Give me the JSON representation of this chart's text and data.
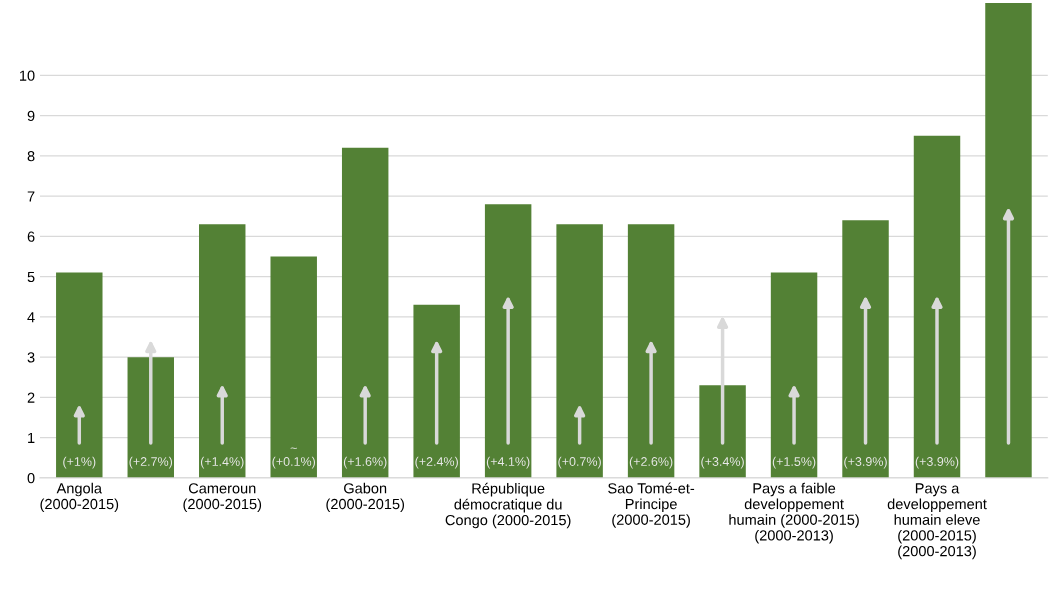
{
  "chart_data": {
    "type": "bar",
    "categories": [
      "Angola\n(2000-2015)",
      null,
      "Cameroun\n(2000-2015)",
      null,
      "Gabon\n(2000-2015)",
      null,
      "République\ndémocratique du\nCongo (2000-2015)",
      null,
      "Sao Tomé-et-\nPrincipe\n(2000-2015)",
      null,
      "Pays a faible\ndeveloppement\nhumain (2000-2015)\n(2000-2013)",
      null,
      "Pays a\ndeveloppement\nhumain eleve\n(2000-2015)\n(2000-2013)",
      null
    ],
    "values": [
      5.1,
      3.0,
      6.3,
      5.5,
      8.2,
      4.3,
      6.8,
      6.3,
      6.3,
      2.3,
      5.1,
      6.4,
      8.5,
      11.8
    ],
    "color": "#538135",
    "ylim": [
      0,
      11.8
    ],
    "yticks": [
      0,
      1,
      2,
      3,
      4,
      5,
      6,
      7,
      8,
      9,
      10
    ],
    "grid": "y",
    "annotations": [
      "(+1%)",
      "(+2.7%)",
      "(+1.4%)",
      "~\n(+0.1%)",
      "(+1.6%)",
      "(+2.4%)",
      "(+4.1%)",
      "(+0.7%)",
      "(+2.6%)",
      "(+3.4%)",
      "(+1.5%)",
      "(+3.9%)",
      "(+3.9%)"
    ]
  }
}
